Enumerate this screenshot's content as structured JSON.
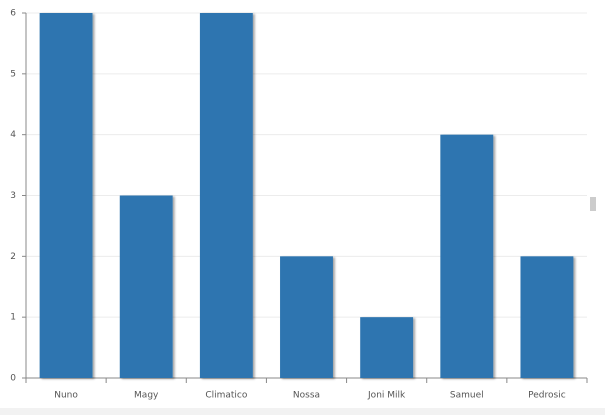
{
  "chart_data": {
    "type": "bar",
    "categories": [
      "Nuno",
      "Magy",
      "Climatico",
      "Nossa",
      "Joni Milk",
      "Samuel",
      "Pedrosic"
    ],
    "values": [
      6,
      3,
      6,
      2,
      1,
      4,
      2
    ],
    "color": "#2e75b0",
    "ylim": [
      0,
      6
    ],
    "yticks": [
      0,
      1,
      2,
      3,
      4,
      5,
      6
    ],
    "grid": true
  }
}
